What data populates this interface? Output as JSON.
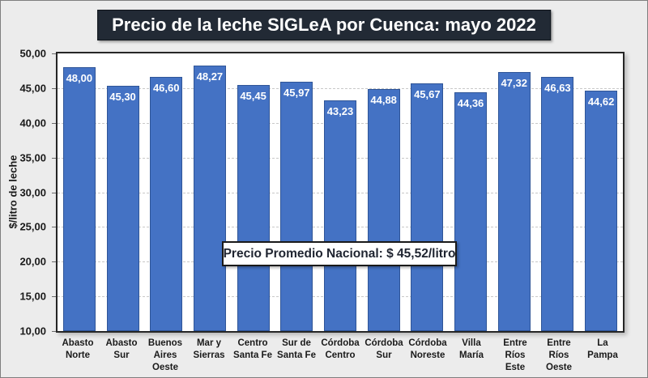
{
  "chart_data": {
    "type": "bar",
    "title": "Precio de la leche SIGLeA por Cuenca: mayo 2022",
    "ylabel": "$/litro de leche",
    "xlabel": "",
    "ylim": [
      10,
      50
    ],
    "ytick_values": [
      50,
      45,
      40,
      35,
      30,
      25,
      20,
      15,
      10
    ],
    "ytick_labels": [
      "50,00",
      "45,00",
      "40,00",
      "35,00",
      "30,00",
      "25,00",
      "20,00",
      "15,00",
      "10,00"
    ],
    "grid": "horizontal-dashed",
    "legend": "none",
    "categories": [
      "Abasto Norte",
      "Abasto Sur",
      "Buenos Aires Oeste",
      "Mar y Sierras",
      "Centro Santa Fe",
      "Sur de Santa Fe",
      "Córdoba Centro",
      "Córdoba Sur",
      "Córdoba Noreste",
      "Villa María",
      "Entre Ríos Este",
      "Entre Ríos Oeste",
      "La Pampa"
    ],
    "xtick_labels": [
      "Abasto\nNorte",
      "Abasto Sur",
      "Buenos\nAires\nOeste",
      "Mar y\nSierras",
      "Centro\nSanta Fe",
      "Sur de\nSanta Fe",
      "Córdoba\nCentro",
      "Córdoba\nSur",
      "Córdoba\nNoreste",
      "Villa María",
      "Entre Ríos\nEste",
      "Entre Ríos\nOeste",
      "La Pampa"
    ],
    "values": [
      48.0,
      45.3,
      46.6,
      48.27,
      45.45,
      45.97,
      43.23,
      44.88,
      45.67,
      44.36,
      47.32,
      46.63,
      44.62
    ],
    "value_labels": [
      "48,00",
      "45,30",
      "46,60",
      "48,27",
      "45,45",
      "45,97",
      "43,23",
      "44,88",
      "45,67",
      "44,36",
      "47,32",
      "46,63",
      "44,62"
    ],
    "annotation": "Precio Promedio Nacional: $ 45,52/litro"
  },
  "colors": {
    "bar_fill": "#4472C4",
    "bar_border": "#2F5597",
    "title_bg": "#222A35",
    "title_text": "#FFFFFF",
    "plot_border": "#262626",
    "gridline": "#C8C8C8",
    "background": "#ECECEC",
    "axis_text": "#1A1A1A",
    "value_label_text": "#FFFFFF",
    "annotation_text": "#1F2430"
  }
}
